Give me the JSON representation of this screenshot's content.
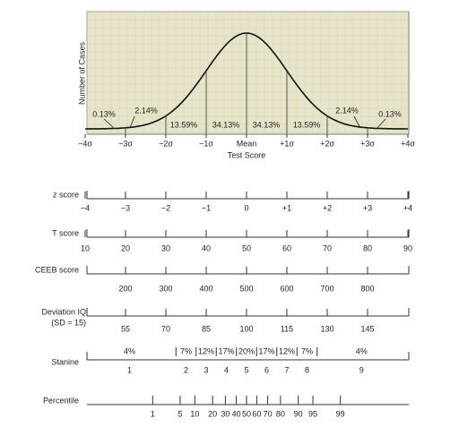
{
  "curve": {
    "y_axis_label": "Number of Cases",
    "x_axis_label": "Test Score",
    "sigma_labels": [
      "−4σ",
      "−3σ",
      "−2σ",
      "−1σ",
      "Mean",
      "+1σ",
      "+2σ",
      "+3σ",
      "+4σ"
    ],
    "area_labels": [
      "0.13%",
      "2.14%",
      "13.59%",
      "34.13%",
      "34.13%",
      "13.59%",
      "2.14%",
      "0.13%"
    ]
  },
  "scales": [
    {
      "label": "z score",
      "ticks": [
        "−4",
        "−3",
        "−2",
        "−1",
        "0",
        "+1",
        "+2",
        "+3",
        "+4"
      ]
    },
    {
      "label": "T score",
      "ticks": [
        10,
        20,
        30,
        40,
        50,
        60,
        70,
        80,
        90
      ]
    },
    {
      "label": "CEEB score",
      "ticks": [
        200,
        300,
        400,
        500,
        600,
        700,
        800
      ]
    },
    {
      "label": "Deviation IQ",
      "sublabel": "(SD = 15)",
      "ticks": [
        55,
        70,
        85,
        100,
        115,
        130,
        145
      ]
    },
    {
      "label": "Stanine",
      "percents": [
        "4%",
        "7%",
        "12%",
        "17%",
        "20%",
        "17%",
        "12%",
        "7%",
        "4%"
      ],
      "ticks": [
        1,
        2,
        3,
        4,
        5,
        6,
        7,
        8,
        9
      ]
    },
    {
      "label": "Percentile",
      "ticks": [
        1,
        5,
        10,
        20,
        30,
        40,
        50,
        60,
        70,
        80,
        90,
        95,
        99
      ]
    }
  ]
}
